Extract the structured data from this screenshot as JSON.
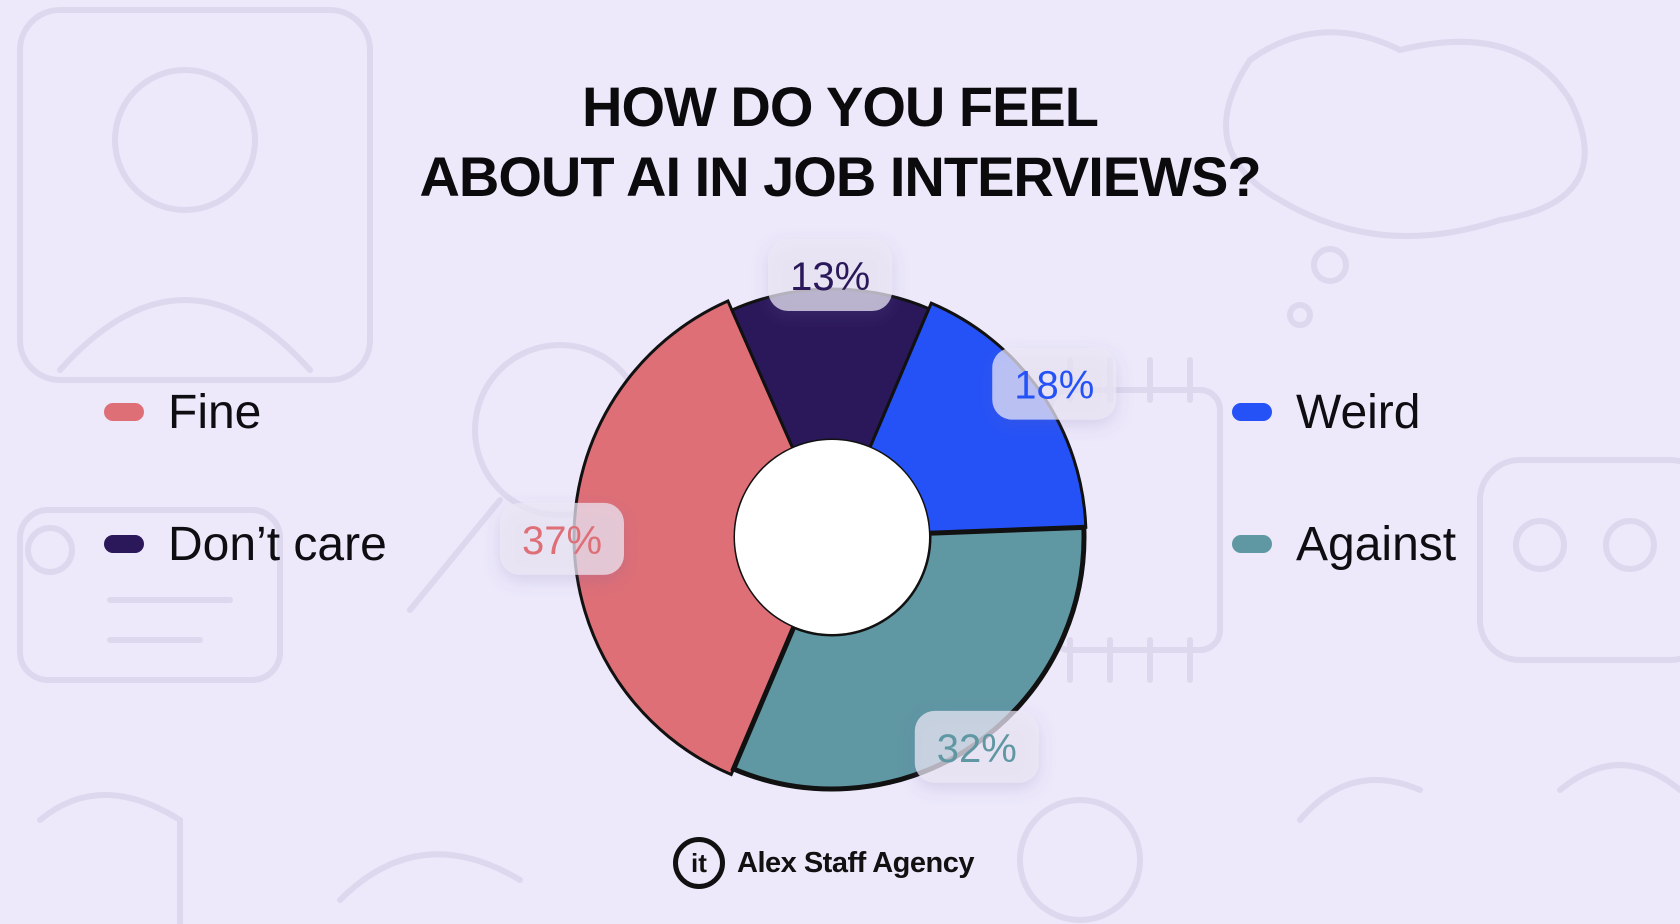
{
  "chart_data": {
    "type": "pie",
    "title_lines": [
      "HOW DO YOU FEEL",
      "ABOUT AI IN JOB INTERVIEWS?"
    ],
    "slices": [
      {
        "name": "Fine",
        "value": 37,
        "label": "37%",
        "color": "#de6f77"
      },
      {
        "name": "Don’t care",
        "value": 13,
        "label": "13%",
        "color": "#2a185a"
      },
      {
        "name": "Weird",
        "value": 18,
        "label": "18%",
        "color": "#2552f7"
      },
      {
        "name": "Against",
        "value": 32,
        "label": "32%",
        "color": "#5f97a3"
      }
    ],
    "donut": true,
    "legend_placement": "left-and-right"
  },
  "brand": {
    "logo_text": "it",
    "name": "Alex Staff Agency"
  }
}
